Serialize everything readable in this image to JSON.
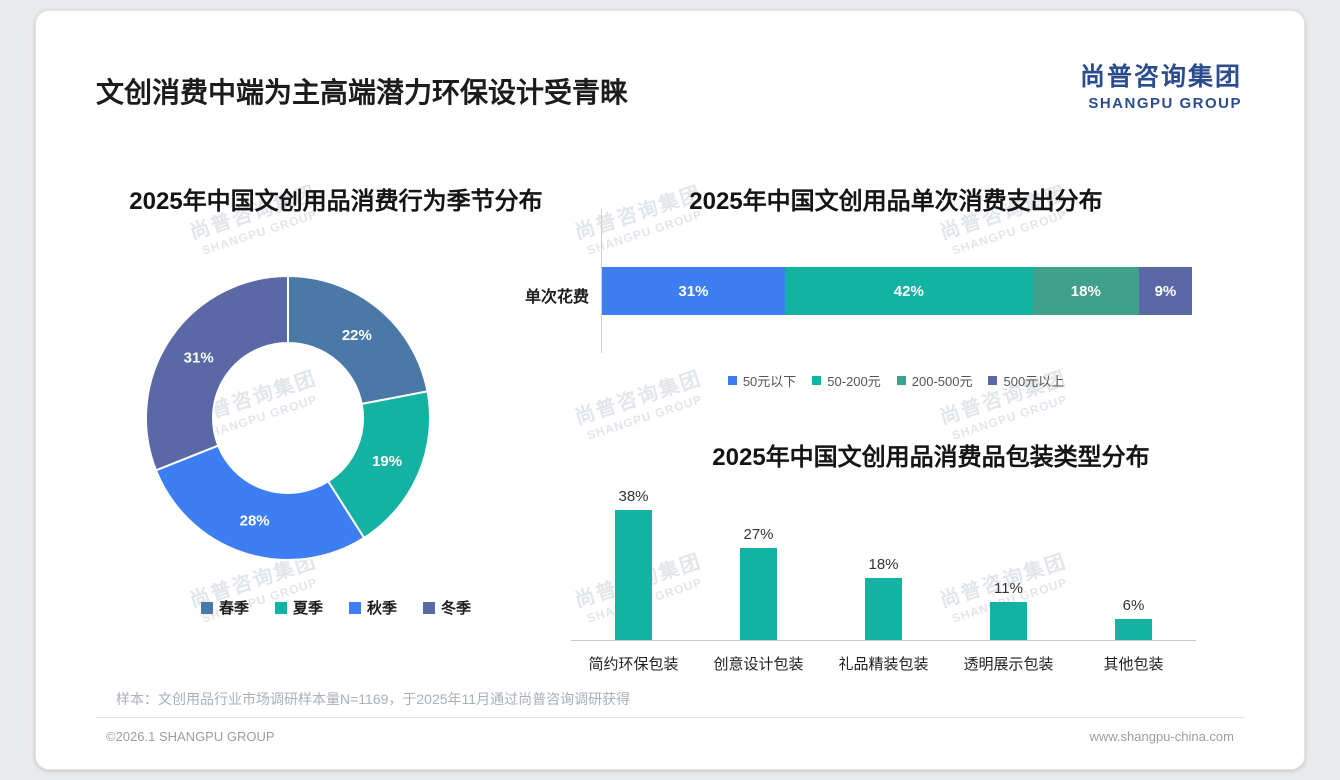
{
  "page": {
    "title": "文创消费中端为主高端潜力环保设计受青睐",
    "logo": {
      "cn": "尚普咨询集团",
      "en": "SHANGPU GROUP"
    },
    "watermark": {
      "cn": "尚普咨询集团",
      "en": "SHANGPU GROUP"
    },
    "footnote": "样本：文创用品行业市场调研样本量N=1169，于2025年11月通过尚普咨询调研获得",
    "footer": {
      "left": "©2026.1 SHANGPU GROUP",
      "right": "www.shangpu-china.com"
    }
  },
  "chart_data": [
    {
      "type": "pie",
      "subtype": "donut",
      "title": "2025年中国文创用品消费行为季节分布",
      "categories": [
        "春季",
        "夏季",
        "秋季",
        "冬季"
      ],
      "values": [
        22,
        19,
        28,
        31
      ],
      "colors": [
        "#4a79a7",
        "#14b2a2",
        "#3d7ef5",
        "#5a68a6"
      ],
      "legend_position": "bottom",
      "value_format": "percent"
    },
    {
      "type": "bar",
      "subtype": "stacked-horizontal",
      "title": "2025年中国文创用品单次消费支出分布",
      "row_label": "单次花费",
      "categories": [
        "50元以下",
        "50-200元",
        "200-500元",
        "500元以上"
      ],
      "values": [
        31,
        42,
        18,
        9
      ],
      "colors": [
        "#3d7ef5",
        "#14b2a2",
        "#3fa08c",
        "#5a68a6"
      ],
      "legend_position": "bottom",
      "value_format": "percent"
    },
    {
      "type": "bar",
      "subtype": "vertical",
      "title": "2025年中国文创用品消费品包装类型分布",
      "categories": [
        "简约环保包装",
        "创意设计包装",
        "礼品精装包装",
        "透明展示包装",
        "其他包装"
      ],
      "values": [
        38,
        27,
        18,
        11,
        6
      ],
      "bar_color": "#14b2a2",
      "ylim": [
        0,
        40
      ],
      "grid": false,
      "value_format": "percent"
    }
  ]
}
